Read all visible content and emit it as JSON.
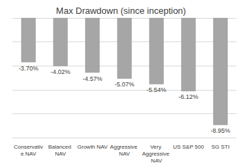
{
  "chart_data": {
    "type": "bar",
    "title": "Max Drawdown (since inception)",
    "categories": [
      "Conservative NAV",
      "Balanced NAV",
      "Growth NAV",
      "Aggressive NAV",
      "Very Aggressive NAV",
      "US S&P 500",
      "SG STI"
    ],
    "values": [
      -3.7,
      -4.02,
      -4.57,
      -5.07,
      -5.54,
      -6.12,
      -8.95
    ],
    "value_labels": [
      "-3.70%",
      "-4.02%",
      "-4.57%",
      "-5.07%",
      "-5.54%",
      "-6.12%",
      "-8.95%"
    ],
    "color": "#a6a6a6",
    "ylim": [
      -10,
      0
    ],
    "yticks": [
      -10,
      -8,
      -6,
      -4,
      -2,
      0
    ],
    "grid": true,
    "data_labels": true,
    "tick_labels": "x"
  }
}
